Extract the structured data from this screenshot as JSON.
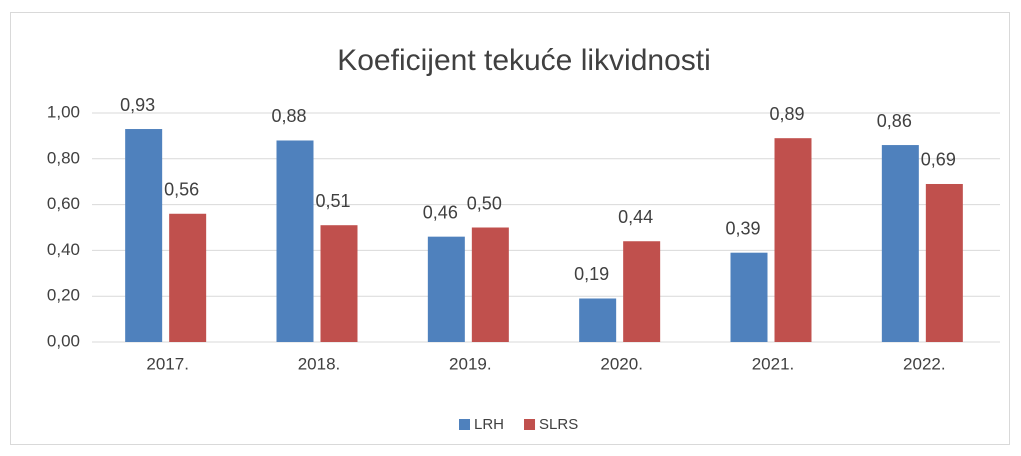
{
  "chart_data": {
    "type": "bar",
    "title": "Koeficijent tekuće likvidnosti",
    "categories": [
      "2017.",
      "2018.",
      "2019.",
      "2020.",
      "2021.",
      "2022."
    ],
    "series": [
      {
        "name": "LRH",
        "color": "#4f81bd",
        "values": [
          0.93,
          0.88,
          0.46,
          0.19,
          0.39,
          0.86
        ],
        "value_labels": [
          "0,93",
          "0,88",
          "0,46",
          "0,19",
          "0,39",
          "0,86"
        ]
      },
      {
        "name": "SLRS",
        "color": "#c0504d",
        "values": [
          0.56,
          0.51,
          0.5,
          0.44,
          0.89,
          0.69
        ],
        "value_labels": [
          "0,56",
          "0,51",
          "0,50",
          "0,44",
          "0,89",
          "0,69"
        ]
      }
    ],
    "ylim": [
      0,
      1
    ],
    "yticks": [
      {
        "value": 0,
        "label": "0,00"
      },
      {
        "value": 0.2,
        "label": "0,20"
      },
      {
        "value": 0.4,
        "label": "0,40"
      },
      {
        "value": 0.6,
        "label": "0,60"
      },
      {
        "value": 0.8,
        "label": "0,80"
      },
      {
        "value": 1,
        "label": "1,00"
      }
    ],
    "grid": true,
    "legend": "bottom"
  }
}
